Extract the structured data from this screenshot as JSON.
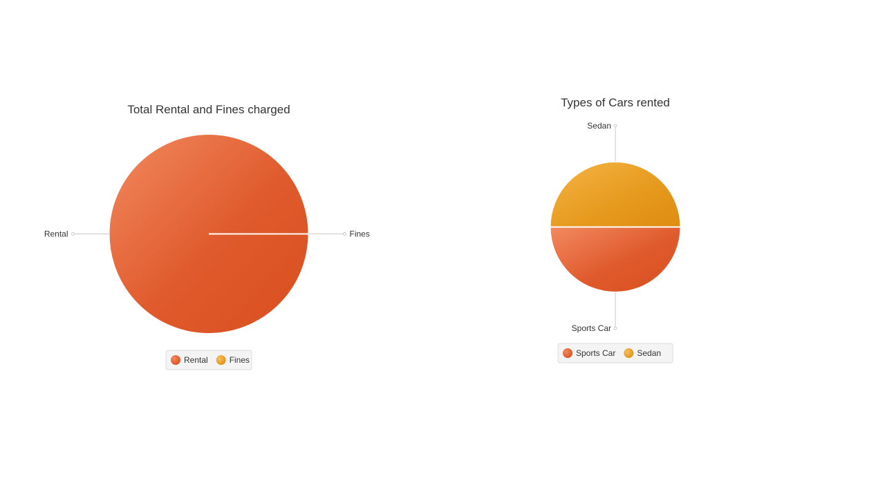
{
  "chart_data": [
    {
      "type": "pie",
      "title": "Total Rental and Fines charged",
      "categories": [
        "Rental",
        "Fines"
      ],
      "values": [
        100,
        0
      ],
      "colors": [
        "#e05a2b",
        "#f0a020"
      ],
      "legend": [
        "Rental",
        "Fines"
      ],
      "legend_position": "bottom"
    },
    {
      "type": "pie",
      "title": "Types of Cars rented",
      "categories": [
        "Sports Car",
        "Sedan"
      ],
      "values": [
        50,
        50
      ],
      "colors": [
        "#e05a2b",
        "#f0a020"
      ],
      "legend": [
        "Sports Car",
        "Sedan"
      ],
      "legend_position": "bottom"
    }
  ]
}
